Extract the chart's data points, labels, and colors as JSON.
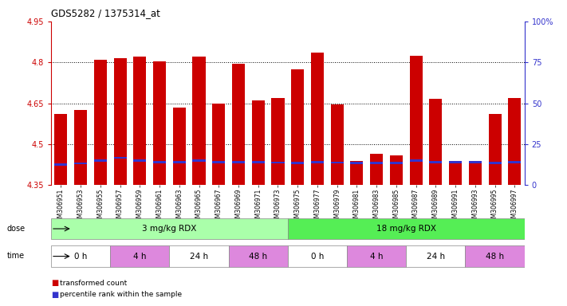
{
  "title": "GDS5282 / 1375314_at",
  "samples": [
    "GSM306951",
    "GSM306953",
    "GSM306955",
    "GSM306957",
    "GSM306959",
    "GSM306961",
    "GSM306963",
    "GSM306965",
    "GSM306967",
    "GSM306969",
    "GSM306971",
    "GSM306973",
    "GSM306975",
    "GSM306977",
    "GSM306979",
    "GSM306981",
    "GSM306983",
    "GSM306985",
    "GSM306987",
    "GSM306989",
    "GSM306991",
    "GSM306993",
    "GSM306995",
    "GSM306997"
  ],
  "red_values": [
    4.61,
    4.625,
    4.81,
    4.815,
    4.82,
    4.805,
    4.635,
    4.82,
    4.65,
    4.795,
    4.66,
    4.67,
    4.775,
    4.835,
    4.645,
    4.44,
    4.465,
    4.46,
    4.825,
    4.665,
    4.43,
    4.43,
    4.61,
    4.67
  ],
  "blue_values": [
    4.425,
    4.43,
    4.44,
    4.45,
    4.44,
    4.435,
    4.435,
    4.44,
    4.435,
    4.435,
    4.435,
    4.433,
    4.432,
    4.435,
    4.433,
    4.432,
    4.432,
    4.432,
    4.44,
    4.435,
    4.435,
    4.435,
    4.432,
    4.435
  ],
  "ymin": 4.35,
  "ymax": 4.95,
  "yticks": [
    4.35,
    4.5,
    4.65,
    4.8,
    4.95
  ],
  "ytick_labels": [
    "4.35",
    "4.5",
    "4.65",
    "4.8",
    "4.95"
  ],
  "grid_lines": [
    4.5,
    4.65,
    4.8
  ],
  "right_yticks": [
    0,
    25,
    50,
    75,
    100
  ],
  "right_ytick_labels": [
    "0",
    "25",
    "50",
    "75",
    "100%"
  ],
  "bar_color": "#cc0000",
  "blue_color": "#3333cc",
  "dose_groups": [
    {
      "label": "3 mg/kg RDX",
      "start": 0,
      "end": 12,
      "color": "#aaffaa"
    },
    {
      "label": "18 mg/kg RDX",
      "start": 12,
      "end": 24,
      "color": "#55ee55"
    }
  ],
  "time_groups": [
    {
      "label": "0 h",
      "start": 0,
      "end": 3,
      "color": "#ffffff"
    },
    {
      "label": "4 h",
      "start": 3,
      "end": 6,
      "color": "#dd88dd"
    },
    {
      "label": "24 h",
      "start": 6,
      "end": 9,
      "color": "#ffffff"
    },
    {
      "label": "48 h",
      "start": 9,
      "end": 12,
      "color": "#dd88dd"
    },
    {
      "label": "0 h",
      "start": 12,
      "end": 15,
      "color": "#ffffff"
    },
    {
      "label": "4 h",
      "start": 15,
      "end": 18,
      "color": "#dd88dd"
    },
    {
      "label": "24 h",
      "start": 18,
      "end": 21,
      "color": "#ffffff"
    },
    {
      "label": "48 h",
      "start": 21,
      "end": 24,
      "color": "#dd88dd"
    }
  ],
  "legend_items": [
    {
      "label": "transformed count",
      "color": "#cc0000"
    },
    {
      "label": "percentile rank within the sample",
      "color": "#3333cc"
    }
  ],
  "left_axis_color": "#cc0000",
  "right_axis_color": "#3333cc"
}
